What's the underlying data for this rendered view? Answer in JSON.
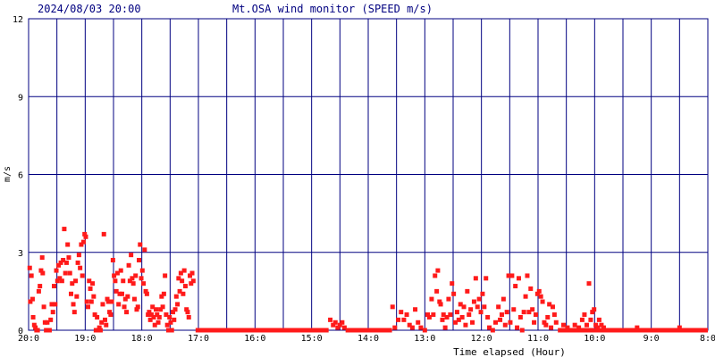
{
  "chart_data": {
    "type": "scatter",
    "header": {
      "timestamp": "2024/08/03 20:00",
      "title": "Mt.OSA wind monitor (SPEED m/s)"
    },
    "xlabel": "Time elapsed (Hour)",
    "ylabel": "m/s",
    "x_unit": "hours elapsed",
    "xlim": [
      0,
      12
    ],
    "ylim": [
      0,
      12
    ],
    "x_tick_labels": [
      "20:0",
      "19:0",
      "18:0",
      "17:0",
      "16:0",
      "15:0",
      "14:0",
      "13:0",
      "12:0",
      "11:0",
      "10:0",
      "9:0",
      "8:0"
    ],
    "y_ticks": [
      0,
      3,
      6,
      9,
      12
    ],
    "grid": true,
    "colors": {
      "points": "#ff1a1a",
      "grid": "#000080",
      "header_text": "#000080",
      "axis_text": "#000000"
    },
    "series": [
      {
        "values": [
          [
            0.02,
            2.4
          ],
          [
            0.03,
            1.1
          ],
          [
            0.05,
            2.1
          ],
          [
            0.07,
            1.2
          ],
          [
            0.08,
            0.5
          ],
          [
            0.1,
            0.2
          ],
          [
            0.12,
            0.1
          ],
          [
            0.14,
            0.0
          ],
          [
            0.16,
            0.0
          ],
          [
            0.18,
            1.5
          ],
          [
            0.2,
            1.7
          ],
          [
            0.22,
            2.3
          ],
          [
            0.24,
            2.8
          ],
          [
            0.25,
            2.2
          ],
          [
            0.27,
            0.9
          ],
          [
            0.29,
            0.3
          ],
          [
            0.31,
            0.0
          ],
          [
            0.33,
            0.3
          ],
          [
            0.35,
            0.0
          ],
          [
            0.37,
            0.0
          ],
          [
            0.39,
            0.4
          ],
          [
            0.41,
            1.0
          ],
          [
            0.43,
            0.7
          ],
          [
            0.45,
            1.7
          ],
          [
            0.47,
            1.0
          ],
          [
            0.49,
            2.3
          ],
          [
            0.51,
            1.9
          ],
          [
            0.53,
            2.5
          ],
          [
            0.55,
            2.0
          ],
          [
            0.57,
            2.6
          ],
          [
            0.59,
            1.9
          ],
          [
            0.61,
            2.7
          ],
          [
            0.63,
            3.9
          ],
          [
            0.65,
            2.2
          ],
          [
            0.67,
            2.6
          ],
          [
            0.69,
            3.3
          ],
          [
            0.71,
            2.8
          ],
          [
            0.73,
            2.2
          ],
          [
            0.75,
            1.4
          ],
          [
            0.77,
            1.8
          ],
          [
            0.79,
            1.0
          ],
          [
            0.81,
            0.7
          ],
          [
            0.83,
            1.9
          ],
          [
            0.85,
            1.3
          ],
          [
            0.87,
            2.6
          ],
          [
            0.89,
            2.9
          ],
          [
            0.91,
            2.4
          ],
          [
            0.93,
            3.3
          ],
          [
            0.95,
            2.1
          ],
          [
            0.97,
            3.4
          ],
          [
            0.99,
            3.7
          ],
          [
            1.01,
            3.6
          ],
          [
            1.03,
            1.1
          ],
          [
            1.05,
            0.9
          ],
          [
            1.07,
            1.9
          ],
          [
            1.09,
            1.6
          ],
          [
            1.11,
            1.1
          ],
          [
            1.13,
            1.8
          ],
          [
            1.15,
            1.3
          ],
          [
            1.17,
            0.6
          ],
          [
            1.19,
            0.0
          ],
          [
            1.21,
            0.5
          ],
          [
            1.23,
            0.0
          ],
          [
            1.25,
            0.1
          ],
          [
            1.27,
            0.0
          ],
          [
            1.29,
            0.3
          ],
          [
            1.31,
            1.0
          ],
          [
            1.33,
            3.7
          ],
          [
            1.35,
            0.4
          ],
          [
            1.37,
            0.2
          ],
          [
            1.39,
            1.2
          ],
          [
            1.41,
            1.1
          ],
          [
            1.43,
            0.7
          ],
          [
            1.45,
            0.6
          ],
          [
            1.47,
            1.1
          ],
          [
            1.49,
            2.7
          ],
          [
            1.51,
            2.1
          ],
          [
            1.53,
            1.9
          ],
          [
            1.55,
            1.5
          ],
          [
            1.57,
            2.2
          ],
          [
            1.59,
            1.0
          ],
          [
            1.61,
            1.4
          ],
          [
            1.63,
            2.3
          ],
          [
            1.65,
            1.4
          ],
          [
            1.67,
            1.9
          ],
          [
            1.69,
            0.9
          ],
          [
            1.71,
            1.2
          ],
          [
            1.73,
            0.7
          ],
          [
            1.75,
            1.3
          ],
          [
            1.77,
            2.5
          ],
          [
            1.79,
            1.9
          ],
          [
            1.81,
            2.9
          ],
          [
            1.83,
            2.0
          ],
          [
            1.85,
            1.8
          ],
          [
            1.87,
            1.2
          ],
          [
            1.89,
            2.1
          ],
          [
            1.91,
            0.8
          ],
          [
            1.93,
            0.9
          ],
          [
            1.95,
            2.7
          ],
          [
            1.97,
            3.3
          ],
          [
            1.99,
            2.0
          ],
          [
            2.01,
            2.3
          ],
          [
            2.03,
            1.8
          ],
          [
            2.05,
            3.1
          ],
          [
            2.07,
            1.5
          ],
          [
            2.09,
            1.4
          ],
          [
            2.11,
            0.6
          ],
          [
            2.13,
            0.7
          ],
          [
            2.15,
            0.4
          ],
          [
            2.17,
            0.6
          ],
          [
            2.19,
            0.9
          ],
          [
            2.21,
            0.5
          ],
          [
            2.23,
            0.2
          ],
          [
            2.25,
            0.8
          ],
          [
            2.27,
            0.6
          ],
          [
            2.29,
            0.3
          ],
          [
            2.31,
            0.5
          ],
          [
            2.33,
            0.8
          ],
          [
            2.35,
            1.3
          ],
          [
            2.37,
            0.9
          ],
          [
            2.39,
            1.4
          ],
          [
            2.41,
            2.1
          ],
          [
            2.43,
            0.6
          ],
          [
            2.45,
            0.2
          ],
          [
            2.47,
            0.0
          ],
          [
            2.49,
            0.5
          ],
          [
            2.51,
            0.3
          ],
          [
            2.53,
            0.0
          ],
          [
            2.55,
            0.7
          ],
          [
            2.57,
            0.4
          ],
          [
            2.59,
            0.8
          ],
          [
            2.61,
            1.3
          ],
          [
            2.63,
            1.0
          ],
          [
            2.65,
            2.0
          ],
          [
            2.67,
            1.5
          ],
          [
            2.69,
            2.2
          ],
          [
            2.71,
            1.9
          ],
          [
            2.73,
            1.4
          ],
          [
            2.75,
            2.3
          ],
          [
            2.77,
            1.7
          ],
          [
            2.79,
            0.8
          ],
          [
            2.81,
            0.7
          ],
          [
            2.83,
            0.5
          ],
          [
            2.85,
            2.1
          ],
          [
            2.87,
            1.8
          ],
          [
            2.89,
            2.2
          ],
          [
            2.91,
            1.9
          ],
          [
            3.0,
            0.0
          ],
          [
            3.2,
            0.0
          ],
          [
            3.4,
            0.0
          ],
          [
            3.6,
            0.0
          ],
          [
            3.8,
            0.0
          ],
          [
            4.0,
            0.0
          ],
          [
            4.2,
            0.0
          ],
          [
            4.4,
            0.0
          ],
          [
            4.6,
            0.0
          ],
          [
            4.8,
            0.0
          ],
          [
            5.0,
            0.0
          ],
          [
            5.33,
            0.4
          ],
          [
            5.38,
            0.2
          ],
          [
            5.42,
            0.3
          ],
          [
            5.46,
            0.1
          ],
          [
            5.5,
            0.2
          ],
          [
            5.54,
            0.3
          ],
          [
            5.58,
            0.1
          ],
          [
            5.7,
            0.0
          ],
          [
            5.9,
            0.0
          ],
          [
            6.1,
            0.0
          ],
          [
            6.3,
            0.0
          ],
          [
            6.43,
            0.9
          ],
          [
            6.47,
            0.1
          ],
          [
            6.53,
            0.4
          ],
          [
            6.58,
            0.7
          ],
          [
            6.63,
            0.4
          ],
          [
            6.68,
            0.6
          ],
          [
            6.73,
            0.2
          ],
          [
            6.78,
            0.1
          ],
          [
            6.83,
            0.8
          ],
          [
            6.88,
            0.3
          ],
          [
            6.93,
            0.1
          ],
          [
            7.0,
            0.0
          ],
          [
            7.05,
            0.6
          ],
          [
            7.08,
            0.5
          ],
          [
            7.12,
            1.2
          ],
          [
            7.15,
            0.6
          ],
          [
            7.18,
            2.1
          ],
          [
            7.21,
            1.5
          ],
          [
            7.23,
            2.3
          ],
          [
            7.26,
            1.1
          ],
          [
            7.28,
            1.0
          ],
          [
            7.31,
            0.4
          ],
          [
            7.33,
            0.6
          ],
          [
            7.36,
            0.1
          ],
          [
            7.39,
            0.5
          ],
          [
            7.42,
            1.2
          ],
          [
            7.45,
            0.6
          ],
          [
            7.48,
            1.8
          ],
          [
            7.51,
            1.4
          ],
          [
            7.54,
            0.3
          ],
          [
            7.57,
            0.7
          ],
          [
            7.6,
            0.4
          ],
          [
            7.63,
            1.0
          ],
          [
            7.66,
            0.5
          ],
          [
            7.69,
            0.9
          ],
          [
            7.72,
            0.2
          ],
          [
            7.75,
            1.5
          ],
          [
            7.78,
            0.6
          ],
          [
            7.81,
            0.8
          ],
          [
            7.84,
            0.3
          ],
          [
            7.87,
            1.1
          ],
          [
            7.9,
            2.0
          ],
          [
            7.93,
            0.9
          ],
          [
            7.96,
            1.2
          ],
          [
            7.99,
            0.7
          ],
          [
            8.02,
            1.4
          ],
          [
            8.05,
            0.9
          ],
          [
            8.08,
            2.0
          ],
          [
            8.11,
            0.5
          ],
          [
            8.14,
            0.1
          ],
          [
            8.2,
            0.0
          ],
          [
            8.25,
            0.3
          ],
          [
            8.3,
            0.9
          ],
          [
            8.33,
            0.4
          ],
          [
            8.36,
            0.6
          ],
          [
            8.39,
            1.2
          ],
          [
            8.42,
            0.2
          ],
          [
            8.45,
            0.7
          ],
          [
            8.48,
            2.1
          ],
          [
            8.51,
            0.3
          ],
          [
            8.54,
            2.1
          ],
          [
            8.57,
            0.8
          ],
          [
            8.6,
            1.7
          ],
          [
            8.63,
            0.1
          ],
          [
            8.66,
            2.0
          ],
          [
            8.69,
            0.5
          ],
          [
            8.72,
            0.0
          ],
          [
            8.75,
            0.7
          ],
          [
            8.78,
            1.3
          ],
          [
            8.81,
            2.1
          ],
          [
            8.84,
            0.7
          ],
          [
            8.87,
            1.6
          ],
          [
            8.9,
            0.8
          ],
          [
            8.93,
            0.3
          ],
          [
            8.96,
            0.6
          ],
          [
            8.99,
            1.4
          ],
          [
            9.02,
            1.5
          ],
          [
            9.05,
            1.3
          ],
          [
            9.08,
            1.1
          ],
          [
            9.11,
            0.3
          ],
          [
            9.14,
            0.2
          ],
          [
            9.17,
            0.5
          ],
          [
            9.2,
            1.0
          ],
          [
            9.23,
            0.1
          ],
          [
            9.26,
            0.9
          ],
          [
            9.29,
            0.6
          ],
          [
            9.32,
            0.3
          ],
          [
            9.4,
            0.0
          ],
          [
            9.45,
            0.2
          ],
          [
            9.52,
            0.1
          ],
          [
            9.6,
            0.0
          ],
          [
            9.65,
            0.2
          ],
          [
            9.72,
            0.1
          ],
          [
            9.78,
            0.4
          ],
          [
            9.82,
            0.6
          ],
          [
            9.86,
            0.2
          ],
          [
            9.9,
            1.8
          ],
          [
            9.93,
            0.4
          ],
          [
            9.96,
            0.7
          ],
          [
            9.99,
            0.8
          ],
          [
            10.02,
            0.2
          ],
          [
            10.05,
            0.1
          ],
          [
            10.08,
            0.4
          ],
          [
            10.12,
            0.2
          ],
          [
            10.16,
            0.1
          ],
          [
            10.3,
            0.0
          ],
          [
            10.45,
            0.0
          ],
          [
            10.6,
            0.0
          ],
          [
            10.75,
            0.1
          ],
          [
            10.9,
            0.0
          ],
          [
            11.05,
            0.0
          ],
          [
            11.2,
            0.0
          ],
          [
            11.35,
            0.0
          ],
          [
            11.5,
            0.1
          ],
          [
            11.65,
            0.0
          ],
          [
            11.8,
            0.0
          ],
          [
            11.95,
            0.0
          ]
        ]
      }
    ]
  }
}
